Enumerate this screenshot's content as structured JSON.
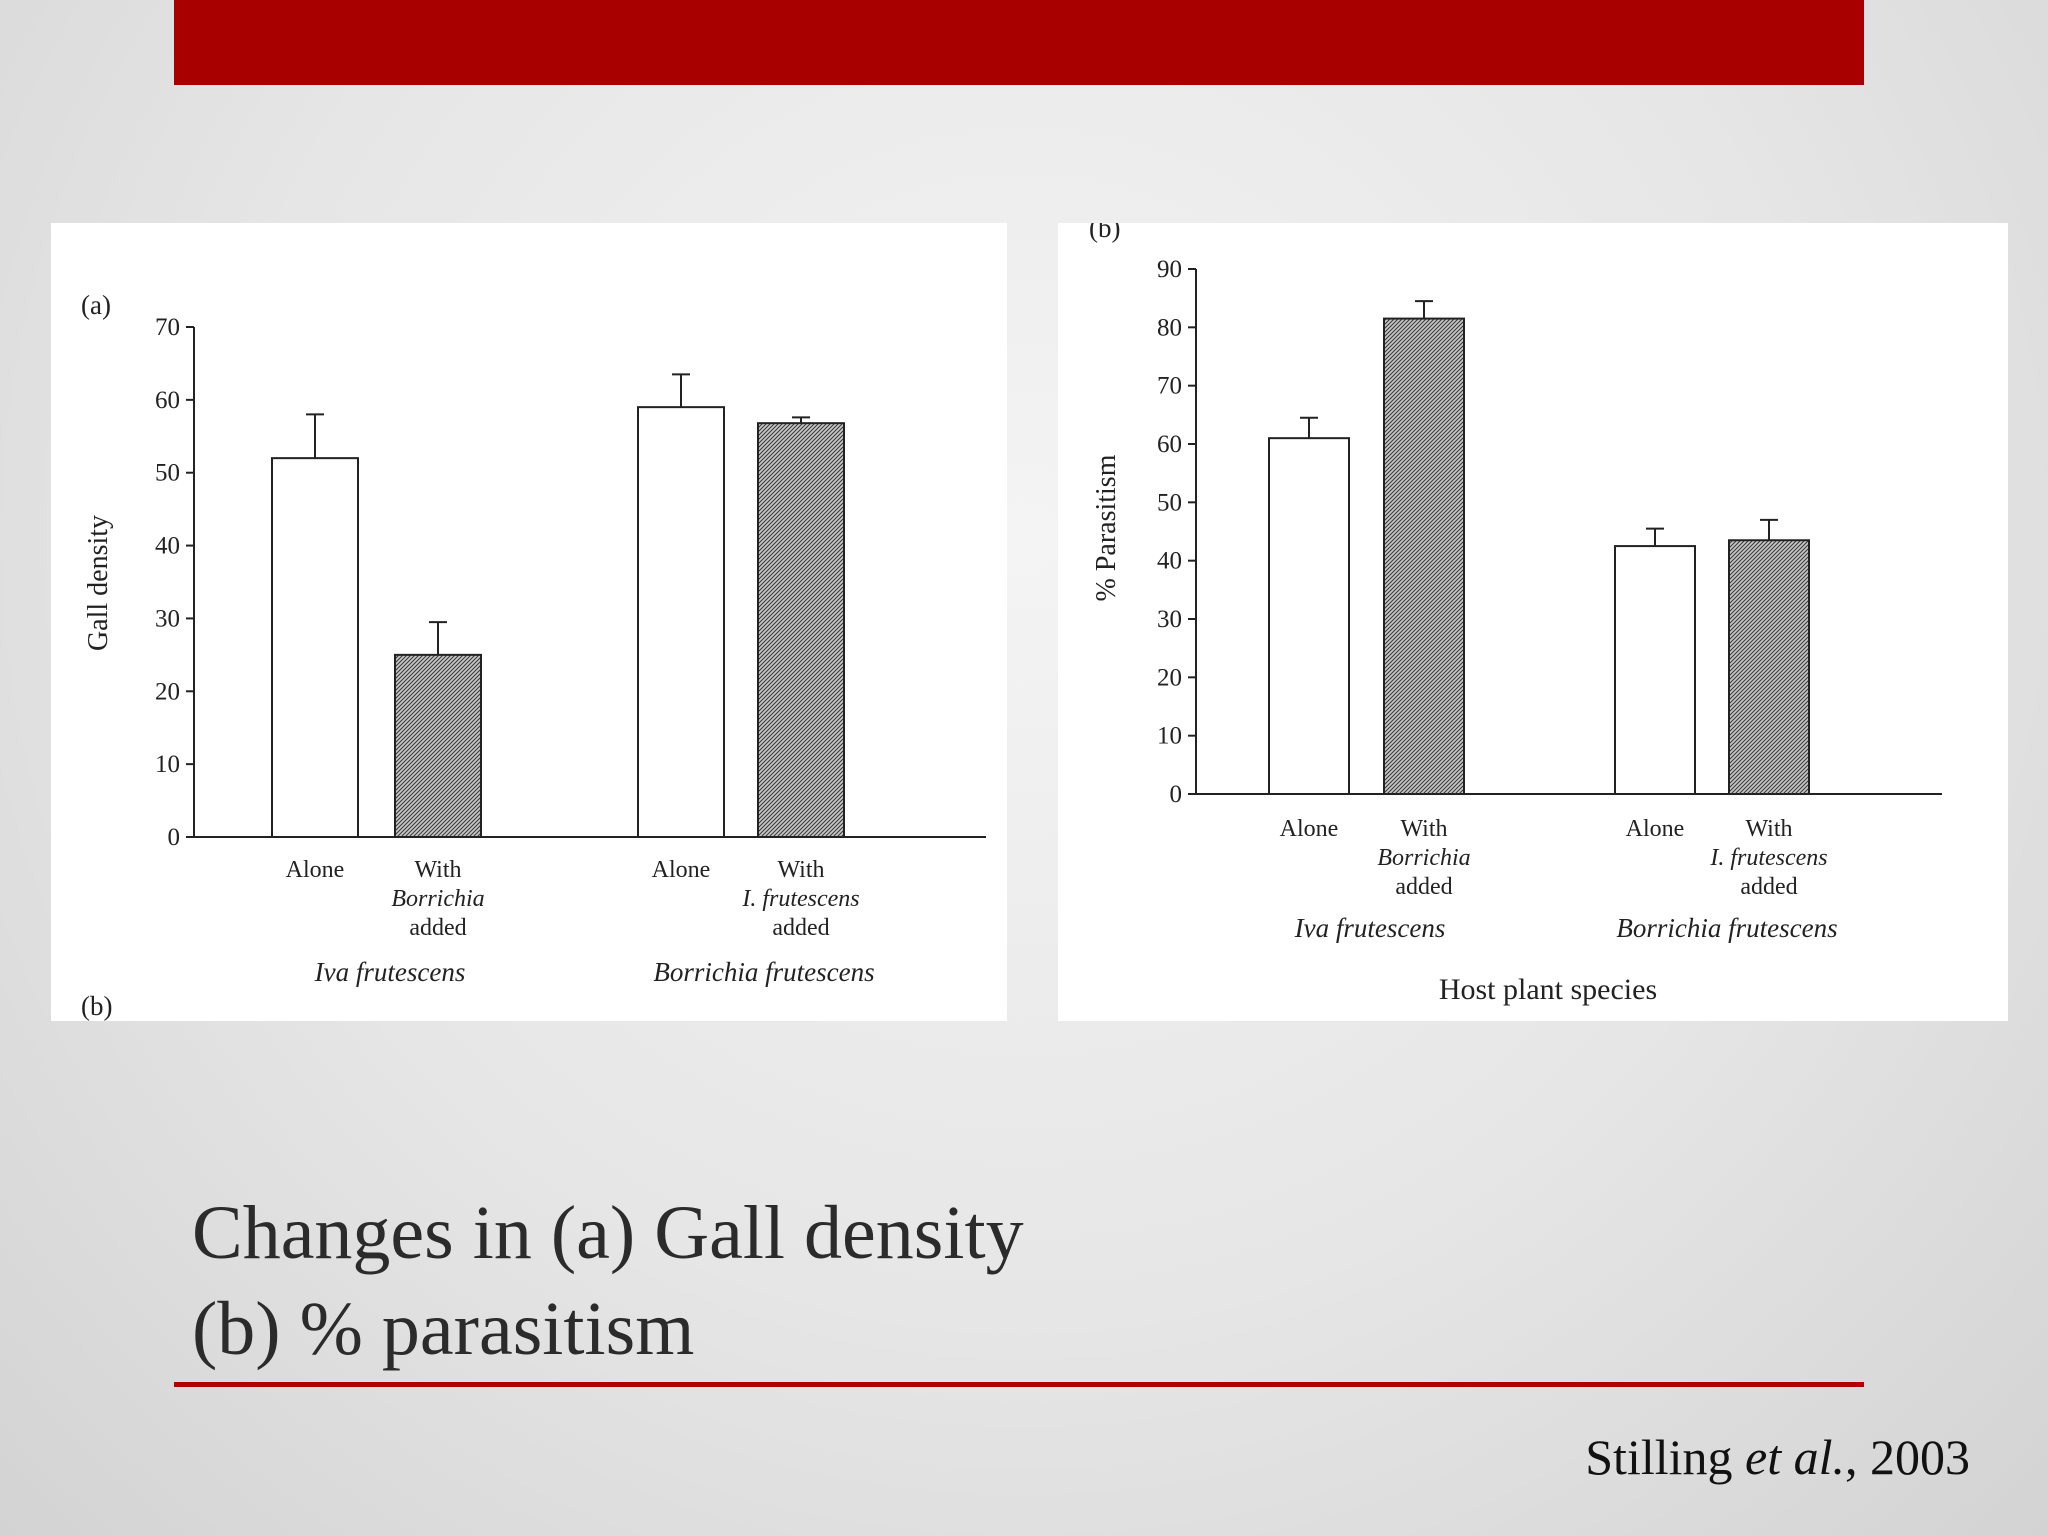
{
  "slide": {
    "title_line1": "Changes in (a) Gall density",
    "title_line2": "(b) % parasitism",
    "citation_author": "Stilling ",
    "citation_etal": "et al.",
    "citation_year": ", 2003"
  },
  "colors": {
    "accent": "#a80000",
    "bar_open": "#ffffff",
    "bar_hatched": "#8a8a8a"
  },
  "chart_data": [
    {
      "type": "bar",
      "panel_label": "(a)",
      "ylabel": "Gall density",
      "ylim": [
        0,
        70
      ],
      "yticks": [
        0,
        10,
        20,
        30,
        40,
        50,
        60,
        70
      ],
      "bars": [
        {
          "label": [
            "Alone"
          ],
          "group": "Iva frutescens",
          "value": 52,
          "error": 6,
          "hatched": false
        },
        {
          "label": [
            "With",
            "Borrichia",
            "added"
          ],
          "group": "Iva frutescens",
          "value": 25,
          "error": 4.5,
          "hatched": true
        },
        {
          "label": [
            "Alone"
          ],
          "group": "Borrichia frutescens",
          "value": 59,
          "error": 4.5,
          "hatched": false
        },
        {
          "label": [
            "With",
            "I. frutescens",
            "added"
          ],
          "group": "Borrichia frutescens",
          "value": 56.8,
          "error": 0.8,
          "hatched": true
        }
      ],
      "groups": [
        "Iva frutescens",
        "Borrichia frutescens"
      ],
      "footer_label": "(b)"
    },
    {
      "type": "bar",
      "panel_label": "(b)",
      "ylabel": "% Parasitism",
      "xlabel": "Host plant species",
      "ylim": [
        0,
        90
      ],
      "yticks": [
        0,
        10,
        20,
        30,
        40,
        50,
        60,
        70,
        80,
        90
      ],
      "bars": [
        {
          "label": [
            "Alone"
          ],
          "group": "Iva frutescens",
          "value": 61,
          "error": 3.5,
          "hatched": false
        },
        {
          "label": [
            "With",
            "Borrichia",
            "added"
          ],
          "group": "Iva frutescens",
          "value": 81.5,
          "error": 3,
          "hatched": true
        },
        {
          "label": [
            "Alone"
          ],
          "group": "Borrichia frutescens",
          "value": 42.5,
          "error": 3,
          "hatched": false
        },
        {
          "label": [
            "With",
            "I. frutescens",
            "added"
          ],
          "group": "Borrichia frutescens",
          "value": 43.5,
          "error": 3.5,
          "hatched": true
        }
      ],
      "groups": [
        "Iva frutescens",
        "Borrichia frutescens"
      ]
    }
  ]
}
